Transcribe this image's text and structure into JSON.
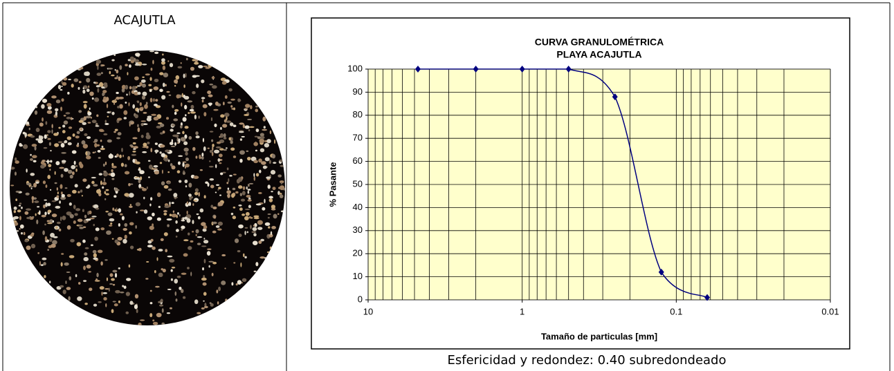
{
  "left_cell": {
    "heading": "ACAJUTLA"
  },
  "right_cell": {
    "caption": "Esfericidad y redondez: 0.40 subredondeado"
  },
  "chart_data": {
    "type": "line",
    "title": "CURVA GRANULOMÉTRICA",
    "subtitle": "PLAYA ACAJUTLA",
    "x_label": "Tamaño de particulas [mm]",
    "y_label": "% Pasante",
    "x": [
      4.75,
      2,
      1,
      0.5,
      0.25,
      0.125,
      0.063
    ],
    "series": [
      {
        "name": "Playa Acajutla",
        "color": "#000080",
        "values": [
          100,
          100,
          100,
          100,
          88,
          12,
          1
        ]
      }
    ],
    "xlim": [
      10,
      0.01
    ],
    "xticks": [
      10,
      1,
      0.1,
      0.01
    ],
    "x_log": true,
    "ylim": [
      0,
      100
    ],
    "yticks": [
      0,
      10,
      20,
      30,
      40,
      50,
      60,
      70,
      80,
      90,
      100
    ],
    "grid": true,
    "background": "#ffffcc"
  }
}
